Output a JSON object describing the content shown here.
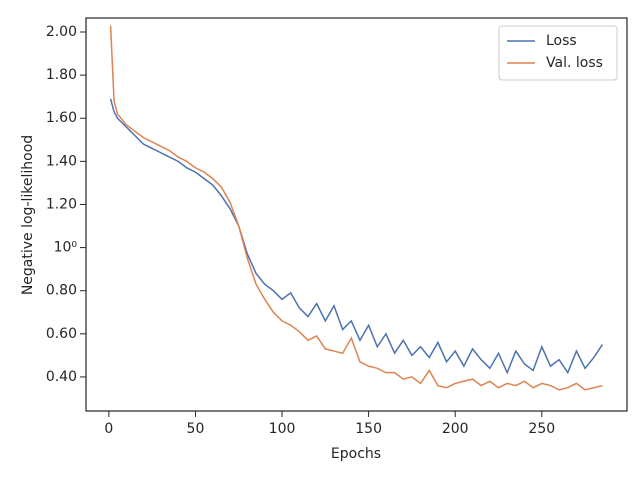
{
  "chart_data": {
    "type": "line",
    "xlabel": "Epochs",
    "ylabel": "Negative log-likelihood",
    "x": [
      1,
      3,
      5,
      10,
      15,
      20,
      25,
      30,
      35,
      40,
      45,
      50,
      55,
      60,
      65,
      70,
      75,
      80,
      85,
      90,
      95,
      100,
      105,
      110,
      115,
      120,
      125,
      130,
      135,
      140,
      145,
      150,
      155,
      160,
      165,
      170,
      175,
      180,
      185,
      190,
      195,
      200,
      205,
      210,
      215,
      220,
      225,
      230,
      235,
      240,
      245,
      250,
      255,
      260,
      265,
      270,
      275,
      280,
      285
    ],
    "series": [
      {
        "name": "Loss",
        "color": "#4c72b0",
        "values": [
          1.69,
          1.63,
          1.6,
          1.56,
          1.52,
          1.48,
          1.46,
          1.44,
          1.42,
          1.4,
          1.37,
          1.35,
          1.32,
          1.29,
          1.24,
          1.18,
          1.1,
          0.97,
          0.88,
          0.83,
          0.8,
          0.76,
          0.79,
          0.72,
          0.68,
          0.74,
          0.66,
          0.73,
          0.62,
          0.66,
          0.57,
          0.64,
          0.54,
          0.6,
          0.51,
          0.57,
          0.5,
          0.54,
          0.49,
          0.56,
          0.47,
          0.52,
          0.45,
          0.53,
          0.48,
          0.44,
          0.51,
          0.42,
          0.52,
          0.46,
          0.43,
          0.54,
          0.45,
          0.48,
          0.42,
          0.52,
          0.44,
          0.49,
          0.55
        ]
      },
      {
        "name": "Val. loss",
        "color": "#dd8452",
        "values": [
          2.03,
          1.68,
          1.62,
          1.57,
          1.54,
          1.51,
          1.49,
          1.47,
          1.45,
          1.42,
          1.4,
          1.37,
          1.35,
          1.32,
          1.28,
          1.21,
          1.1,
          0.95,
          0.83,
          0.76,
          0.7,
          0.66,
          0.64,
          0.61,
          0.57,
          0.59,
          0.53,
          0.52,
          0.51,
          0.58,
          0.47,
          0.45,
          0.44,
          0.42,
          0.42,
          0.39,
          0.4,
          0.37,
          0.43,
          0.36,
          0.35,
          0.37,
          0.38,
          0.39,
          0.36,
          0.38,
          0.35,
          0.37,
          0.36,
          0.38,
          0.35,
          0.37,
          0.36,
          0.34,
          0.35,
          0.37,
          0.34,
          0.35,
          0.36
        ]
      }
    ],
    "xlim": [
      -13.2,
      299.2
    ],
    "xticks": [
      0,
      50,
      100,
      150,
      200,
      250
    ],
    "ylim": [
      0.242,
      2.065
    ],
    "yticks": [
      {
        "value": 0.4,
        "label": "0.40"
      },
      {
        "value": 0.6,
        "label": "0.60"
      },
      {
        "value": 0.8,
        "label": "0.80"
      },
      {
        "value": 1,
        "label": "10⁰"
      },
      {
        "value": 1.2,
        "label": "1.20"
      },
      {
        "value": 1.4,
        "label": "1.40"
      },
      {
        "value": 1.6,
        "label": "1.60"
      },
      {
        "value": 1.8,
        "label": "1.80"
      },
      {
        "value": 2,
        "label": "2.00"
      }
    ],
    "legend": "upper right",
    "grid": false
  }
}
